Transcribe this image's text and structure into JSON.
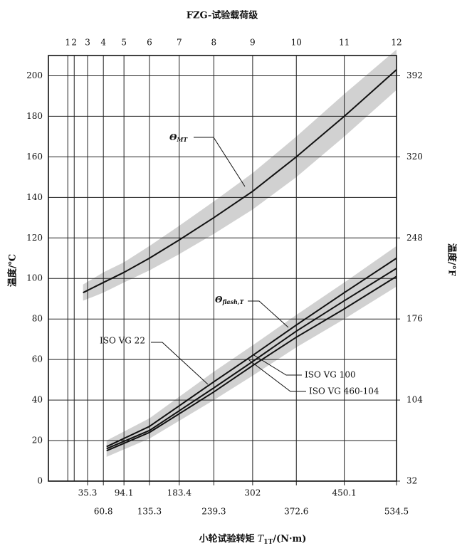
{
  "chart_data": {
    "type": "line",
    "title": "FZG-试验载荷级",
    "ylabel": "温度/℃",
    "y2label": "温度/°F",
    "xlabel": {
      "text": "小轮试验转矩",
      "symbol": "T",
      "subscript": "1T",
      "unit": "/(N·m)"
    },
    "xlim": [
      -28,
      534.5
    ],
    "xticks": [
      35.3,
      60.8,
      94.1,
      135.3,
      183.4,
      239.3,
      302,
      372.6,
      450.1,
      534.5
    ],
    "x2ticks": [
      {
        "value": 3.3,
        "label": "1"
      },
      {
        "value": 13.7,
        "label": "2"
      },
      {
        "value": 35.3,
        "label": "3"
      },
      {
        "value": 60.8,
        "label": "4"
      },
      {
        "value": 94.1,
        "label": "5"
      },
      {
        "value": 135.3,
        "label": "6"
      },
      {
        "value": 183.4,
        "label": "7"
      },
      {
        "value": 239.3,
        "label": "8"
      },
      {
        "value": 302,
        "label": "9"
      },
      {
        "value": 372.6,
        "label": "10"
      },
      {
        "value": 450.1,
        "label": "11"
      },
      {
        "value": 534.5,
        "label": "12"
      }
    ],
    "ylim": [
      0,
      210
    ],
    "yticks": [
      0,
      20,
      40,
      60,
      80,
      100,
      120,
      140,
      160,
      180,
      200
    ],
    "y2lim": [
      32,
      410
    ],
    "y2ticks": [
      32,
      104,
      176,
      248,
      320,
      392
    ],
    "grid": true,
    "bands": [
      {
        "color": "#9a9a9a",
        "x": [
          28,
          60.8,
          94.1,
          135.3,
          183.4,
          239.3,
          302,
          372.6,
          450.1,
          534.5
        ],
        "lower": [
          89,
          93,
          98,
          104,
          112,
          122,
          134,
          150,
          170,
          193
        ],
        "upper": [
          97,
          103,
          108,
          116,
          126,
          138,
          152,
          170,
          191,
          213
        ]
      },
      {
        "color": "#9a9a9a",
        "x": [
          66,
          135.3,
          239.3,
          302,
          372.6,
          450.1,
          534.5
        ],
        "lower": [
          12,
          21,
          40,
          52,
          66,
          80,
          96
        ],
        "upper": [
          20,
          31,
          54,
          67,
          82,
          98,
          116
        ]
      }
    ],
    "series": [
      {
        "label": {
          "symbol": "Θ",
          "subscript": "MT"
        },
        "color": "#111111",
        "x": [
          28,
          60.8,
          94.1,
          135.3,
          183.4,
          239.3,
          302,
          372.6,
          450.1,
          534.5
        ],
        "values": [
          93,
          98,
          103,
          110,
          119,
          130,
          143,
          160,
          180,
          203
        ]
      },
      {
        "name": "ISO VG 22",
        "color": "#111111",
        "x": [
          66,
          135.3,
          239.3,
          302,
          372.6,
          450.1,
          534.5
        ],
        "values": [
          15,
          24,
          44,
          57,
          71,
          85,
          101
        ]
      },
      {
        "name": "ISO VG 100",
        "color": "#111111",
        "x": [
          66,
          135.3,
          239.3,
          302,
          372.6,
          450.1,
          534.5
        ],
        "values": [
          16,
          25,
          46,
          59,
          74,
          89,
          105
        ]
      },
      {
        "name": "ISO VG 460-104",
        "color": "#111111",
        "x": [
          66,
          135.3,
          239.3,
          302,
          372.6,
          450.1,
          534.5
        ],
        "values": [
          17,
          27,
          49,
          62,
          77,
          93,
          110
        ]
      }
    ],
    "band_label": {
      "symbol": "Θ",
      "subscript": "flash,T"
    }
  }
}
